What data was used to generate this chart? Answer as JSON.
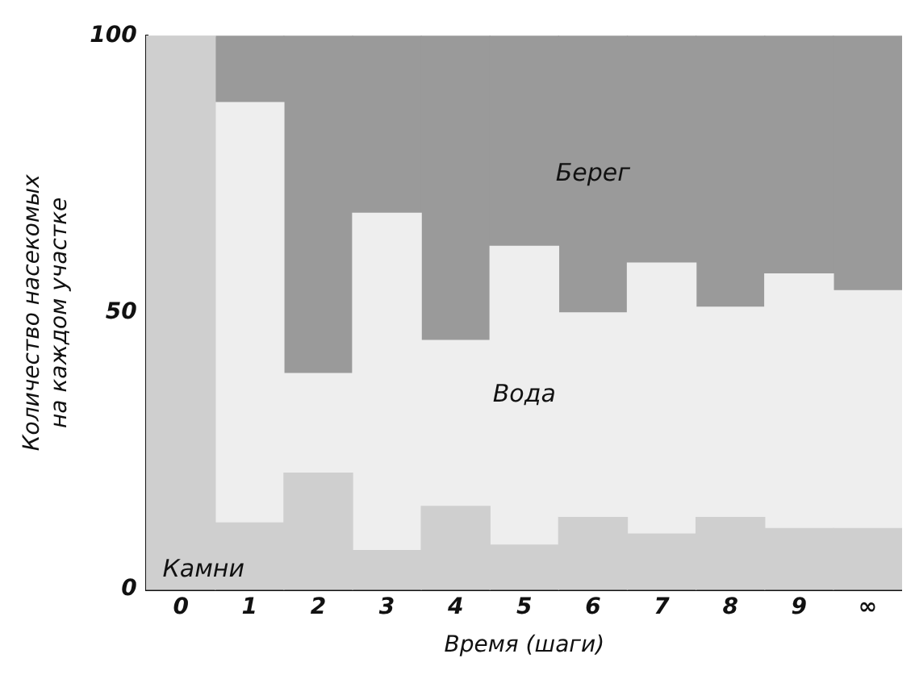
{
  "chart_data": {
    "type": "bar",
    "stacked": true,
    "xlabel": "Время (шаги)",
    "ylabel": "Количество насекомых\nна каждом участке",
    "categories": [
      "0",
      "1",
      "2",
      "3",
      "4",
      "5",
      "6",
      "7",
      "8",
      "9",
      "∞"
    ],
    "series": [
      {
        "name": "Камни",
        "color": "#cfcfcf",
        "values": [
          100,
          12,
          21,
          7,
          15,
          8,
          13,
          10,
          13,
          11,
          11
        ]
      },
      {
        "name": "Вода",
        "color": "#eeeeee",
        "values": [
          0,
          76,
          18,
          61,
          30,
          54,
          37,
          49,
          38,
          46,
          43
        ]
      },
      {
        "name": "Берег",
        "color": "#9a9a9a",
        "values": [
          0,
          12,
          61,
          32,
          55,
          38,
          50,
          41,
          49,
          43,
          46
        ]
      }
    ],
    "ylim": [
      0,
      100
    ],
    "yticks": [
      0,
      50,
      100
    ],
    "grid": false,
    "legend": false
  }
}
